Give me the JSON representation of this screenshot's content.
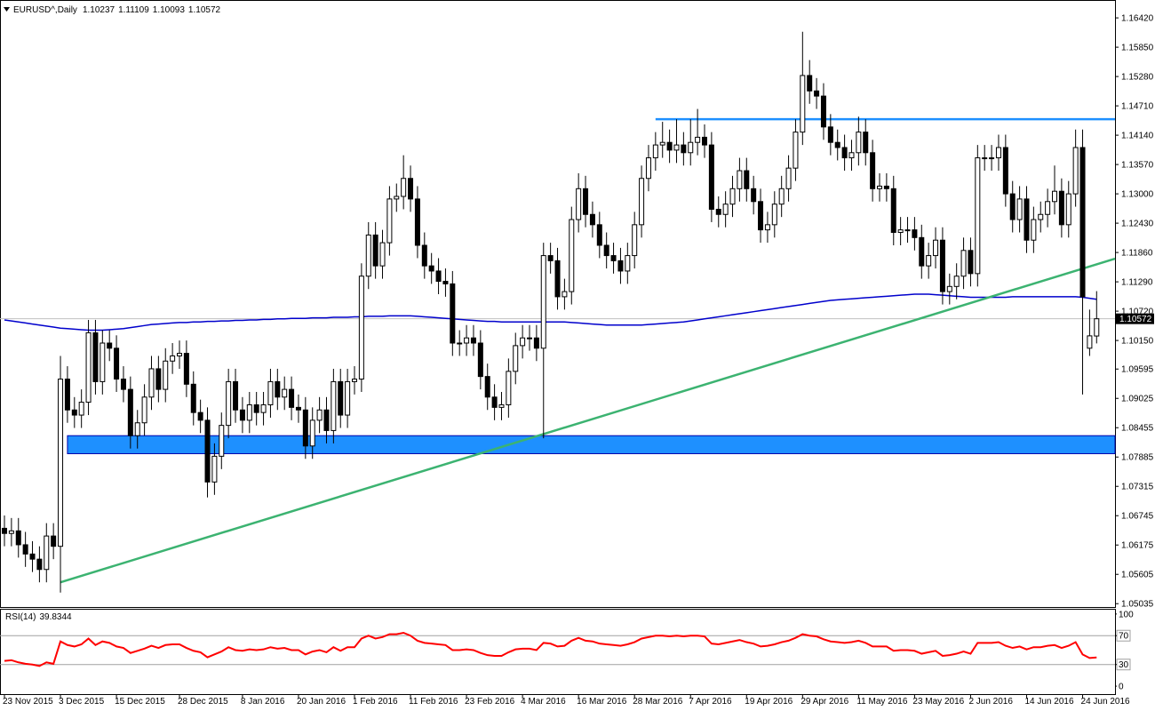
{
  "chart_data": {
    "type": "candlestick",
    "symbol": "EURUSD^,Daily",
    "categories": [
      "23 Nov 2015",
      null,
      null,
      null,
      null,
      null,
      null,
      null,
      "3 Dec 2015",
      null,
      null,
      null,
      null,
      null,
      null,
      null,
      "15 Dec 2015",
      null,
      null,
      null,
      null,
      null,
      null,
      null,
      null,
      "28 Dec 2015",
      null,
      null,
      null,
      null,
      null,
      null,
      null,
      null,
      "8 Jan 2016",
      null,
      null,
      null,
      null,
      null,
      null,
      null,
      "20 Jan 2016",
      null,
      null,
      null,
      null,
      null,
      null,
      null,
      "1 Feb 2016",
      null,
      null,
      null,
      null,
      null,
      null,
      null,
      "11 Feb 2016",
      null,
      null,
      null,
      null,
      null,
      null,
      null,
      "23 Feb 2016",
      null,
      null,
      null,
      null,
      null,
      null,
      null,
      "4 Mar 2016",
      null,
      null,
      null,
      null,
      null,
      null,
      null,
      "16 Mar 2016",
      null,
      null,
      null,
      null,
      null,
      null,
      null,
      "28 Mar 2016",
      null,
      null,
      null,
      null,
      null,
      null,
      null,
      "7 Apr 2016",
      null,
      null,
      null,
      null,
      null,
      null,
      null,
      "19 Apr 2016",
      null,
      null,
      null,
      null,
      null,
      null,
      null,
      "29 Apr 2016",
      null,
      null,
      null,
      null,
      null,
      null,
      null,
      "11 May 2016",
      null,
      null,
      null,
      null,
      null,
      null,
      null,
      "23 May 2016",
      null,
      null,
      null,
      null,
      null,
      null,
      null,
      "2 Jun 2016",
      null,
      null,
      null,
      null,
      null,
      null,
      null,
      "14 Jun 2016",
      null,
      null,
      null,
      null,
      null,
      null,
      null,
      "24 Jun 2016",
      null,
      null
    ],
    "open": [
      1.065,
      1.064,
      1.0645,
      1.0618,
      1.06,
      1.059,
      1.057,
      1.0635,
      1.0615,
      1.094,
      1.088,
      1.087,
      1.0895,
      1.103,
      1.0935,
      1.101,
      1.1,
      1.094,
      1.092,
      1.083,
      1.0855,
      1.0905,
      1.096,
      1.092,
      1.0975,
      1.0985,
      1.099,
      1.093,
      1.0875,
      1.086,
      1.074,
      1.079,
      1.085,
      1.0935,
      1.088,
      1.086,
      1.089,
      1.0875,
      1.089,
      1.0935,
      1.0905,
      1.092,
      1.0885,
      1.088,
      1.081,
      1.086,
      1.088,
      1.084,
      1.0935,
      1.087,
      1.0935,
      1.094,
      1.114,
      1.122,
      1.116,
      1.1205,
      1.129,
      1.1295,
      1.133,
      1.129,
      1.12,
      1.116,
      1.115,
      1.113,
      1.1125,
      1.101,
      1.101,
      1.102,
      1.101,
      1.0945,
      1.0905,
      1.0885,
      1.089,
      1.0955,
      1.1005,
      1.102,
      1.102,
      1.1,
      1.118,
      1.117,
      1.11,
      1.111,
      1.125,
      1.131,
      1.126,
      1.124,
      1.12,
      1.118,
      1.117,
      1.115,
      1.118,
      1.124,
      1.133,
      1.137,
      1.1395,
      1.14,
      1.1385,
      1.1395,
      1.138,
      1.14,
      1.141,
      1.1395,
      1.127,
      1.126,
      1.128,
      1.131,
      1.1345,
      1.131,
      1.1285,
      1.123,
      1.124,
      1.128,
      1.131,
      1.135,
      1.142,
      1.153,
      1.15,
      1.149,
      1.143,
      1.14,
      1.139,
      1.137,
      1.138,
      1.142,
      1.138,
      1.131,
      1.1315,
      1.131,
      1.1225,
      1.123,
      1.123,
      1.1215,
      1.116,
      1.118,
      1.121,
      1.111,
      1.112,
      1.114,
      1.119,
      1.1145,
      1.137,
      1.137,
      1.137,
      1.139,
      1.13,
      1.125,
      1.129,
      1.121,
      1.125,
      1.126,
      1.1285,
      1.1305,
      1.124,
      1.13,
      1.139,
      1.1,
      1.10237
    ],
    "high": [
      1.0675,
      1.067,
      1.067,
      1.0643,
      1.0625,
      1.0615,
      1.066,
      1.066,
      1.0985,
      1.0965,
      1.0905,
      1.092,
      1.1055,
      1.1055,
      1.1035,
      1.1035,
      1.1025,
      1.0965,
      1.0945,
      1.088,
      1.093,
      1.0985,
      1.0985,
      1.1,
      1.101,
      1.1015,
      1.1015,
      1.0955,
      1.09,
      1.0885,
      1.0815,
      1.0875,
      1.096,
      1.096,
      1.0905,
      1.0915,
      1.0915,
      1.0915,
      1.096,
      1.096,
      1.0945,
      1.0945,
      1.091,
      1.0905,
      1.0885,
      1.0905,
      1.0905,
      1.096,
      1.096,
      1.096,
      1.0965,
      1.1165,
      1.1245,
      1.1245,
      1.123,
      1.1315,
      1.132,
      1.1375,
      1.1355,
      1.1315,
      1.1225,
      1.1185,
      1.1175,
      1.1155,
      1.115,
      1.1035,
      1.1045,
      1.1045,
      1.1035,
      1.097,
      1.093,
      1.0915,
      1.098,
      1.103,
      1.1045,
      1.1045,
      1.1045,
      1.1205,
      1.1205,
      1.1195,
      1.1135,
      1.1275,
      1.134,
      1.1335,
      1.1285,
      1.1265,
      1.1225,
      1.1205,
      1.1195,
      1.1205,
      1.1265,
      1.1355,
      1.1395,
      1.142,
      1.144,
      1.1425,
      1.1445,
      1.142,
      1.1445,
      1.1465,
      1.1435,
      1.142,
      1.1295,
      1.1305,
      1.1335,
      1.137,
      1.137,
      1.1335,
      1.131,
      1.1265,
      1.1305,
      1.1335,
      1.1375,
      1.1445,
      1.1615,
      1.156,
      1.1525,
      1.1515,
      1.1455,
      1.1425,
      1.1415,
      1.1405,
      1.145,
      1.1445,
      1.1405,
      1.134,
      1.134,
      1.1335,
      1.1255,
      1.1255,
      1.1255,
      1.124,
      1.1205,
      1.1235,
      1.1235,
      1.1145,
      1.1165,
      1.1215,
      1.1215,
      1.1395,
      1.1395,
      1.1395,
      1.1415,
      1.1415,
      1.1325,
      1.1315,
      1.1315,
      1.1275,
      1.1285,
      1.131,
      1.1355,
      1.133,
      1.1325,
      1.1425,
      1.1425,
      1.1075,
      1.11109
    ],
    "low": [
      1.0615,
      1.0615,
      1.0593,
      1.0575,
      1.0565,
      1.0545,
      1.0545,
      1.059,
      1.0525,
      1.0855,
      1.0845,
      1.0845,
      1.087,
      1.091,
      1.091,
      1.0975,
      1.0915,
      1.0895,
      1.0805,
      1.0805,
      1.083,
      1.088,
      1.0895,
      1.0895,
      1.095,
      1.096,
      1.0905,
      1.085,
      1.0835,
      1.071,
      1.0715,
      1.0765,
      1.0825,
      1.0855,
      1.0835,
      1.0835,
      1.085,
      1.085,
      1.0865,
      1.088,
      1.088,
      1.086,
      1.0855,
      1.0785,
      1.0785,
      1.0835,
      1.0815,
      1.0815,
      1.0845,
      1.0845,
      1.091,
      1.0915,
      1.1115,
      1.1135,
      1.1135,
      1.118,
      1.1265,
      1.127,
      1.1265,
      1.1175,
      1.1135,
      1.1125,
      1.1105,
      1.11,
      1.0985,
      1.0985,
      1.0985,
      1.0985,
      1.092,
      1.088,
      1.086,
      1.086,
      1.0865,
      1.093,
      1.098,
      1.0995,
      1.0975,
      1.0825,
      1.1145,
      1.1075,
      1.1075,
      1.1085,
      1.1225,
      1.1235,
      1.1215,
      1.1175,
      1.1155,
      1.1145,
      1.1125,
      1.1125,
      1.1155,
      1.1215,
      1.1305,
      1.1345,
      1.137,
      1.136,
      1.136,
      1.1355,
      1.1355,
      1.1375,
      1.137,
      1.1245,
      1.1235,
      1.1235,
      1.1255,
      1.1285,
      1.1285,
      1.126,
      1.1205,
      1.1205,
      1.1215,
      1.1255,
      1.1285,
      1.1325,
      1.1395,
      1.1475,
      1.1465,
      1.1405,
      1.1375,
      1.1365,
      1.1345,
      1.1345,
      1.1355,
      1.1355,
      1.1285,
      1.1285,
      1.1285,
      1.12,
      1.12,
      1.1205,
      1.119,
      1.1135,
      1.1135,
      1.1155,
      1.1085,
      1.1085,
      1.1095,
      1.1115,
      1.112,
      1.112,
      1.1345,
      1.1345,
      1.1345,
      1.1275,
      1.1225,
      1.1225,
      1.1185,
      1.1185,
      1.1225,
      1.1235,
      1.126,
      1.1215,
      1.1215,
      1.1275,
      1.091,
      1.0985,
      1.10093
    ],
    "close": [
      1.064,
      1.0645,
      1.0618,
      1.06,
      1.059,
      1.057,
      1.0635,
      1.0615,
      1.094,
      1.088,
      1.087,
      1.0895,
      1.103,
      1.0935,
      1.101,
      1.1,
      1.094,
      1.092,
      1.083,
      1.0855,
      1.0905,
      1.096,
      1.092,
      1.0975,
      1.0985,
      1.099,
      1.093,
      1.0875,
      1.086,
      1.074,
      1.079,
      1.085,
      1.0935,
      1.088,
      1.086,
      1.089,
      1.0875,
      1.089,
      1.0935,
      1.0905,
      1.092,
      1.0885,
      1.088,
      1.081,
      1.086,
      1.088,
      1.084,
      1.0935,
      1.087,
      1.0935,
      1.094,
      1.114,
      1.122,
      1.116,
      1.1205,
      1.129,
      1.1295,
      1.133,
      1.129,
      1.12,
      1.116,
      1.115,
      1.113,
      1.1125,
      1.101,
      1.101,
      1.102,
      1.101,
      1.0945,
      1.0905,
      1.0885,
      1.089,
      1.0955,
      1.1005,
      1.102,
      1.102,
      1.1,
      1.118,
      1.117,
      1.11,
      1.111,
      1.125,
      1.131,
      1.126,
      1.124,
      1.12,
      1.118,
      1.117,
      1.115,
      1.118,
      1.124,
      1.133,
      1.137,
      1.1395,
      1.14,
      1.1385,
      1.1395,
      1.138,
      1.14,
      1.141,
      1.1395,
      1.127,
      1.126,
      1.128,
      1.131,
      1.1345,
      1.131,
      1.1285,
      1.123,
      1.124,
      1.128,
      1.131,
      1.135,
      1.142,
      1.153,
      1.15,
      1.149,
      1.143,
      1.14,
      1.139,
      1.137,
      1.138,
      1.142,
      1.138,
      1.131,
      1.1315,
      1.131,
      1.1225,
      1.123,
      1.123,
      1.1215,
      1.116,
      1.118,
      1.121,
      1.111,
      1.112,
      1.114,
      1.119,
      1.1145,
      1.137,
      1.137,
      1.137,
      1.139,
      1.13,
      1.125,
      1.129,
      1.121,
      1.125,
      1.126,
      1.1285,
      1.1305,
      1.124,
      1.13,
      1.139,
      1.11,
      1.1024,
      1.10572
    ],
    "up_color": "#ffffff",
    "down_color": "#000000",
    "ylim": [
      1.0497,
      1.1675
    ],
    "yticks": [
      {
        "value": 1.1642,
        "label": "1.16420"
      },
      {
        "value": 1.1585,
        "label": "1.15850"
      },
      {
        "value": 1.1528,
        "label": "1.15280"
      },
      {
        "value": 1.1471,
        "label": "1.14710"
      },
      {
        "value": 1.1414,
        "label": "1.14140"
      },
      {
        "value": 1.1357,
        "label": "1.13570"
      },
      {
        "value": 1.13,
        "label": "1.13000"
      },
      {
        "value": 1.1243,
        "label": "1.12430"
      },
      {
        "value": 1.1186,
        "label": "1.11860"
      },
      {
        "value": 1.1129,
        "label": "1.11290"
      },
      {
        "value": 1.1072,
        "label": "1.10720"
      },
      {
        "value": 1.1015,
        "label": "1.10150"
      },
      1.09595,
      1.09025,
      1.08455,
      1.07885,
      1.07315,
      1.06745,
      1.06175,
      1.05605,
      1.05035
    ],
    "ma": {
      "color": "#0000cc",
      "values": [
        1.1055,
        1.1053,
        1.1051,
        1.1049,
        1.1047,
        1.1045,
        1.1043,
        1.1041,
        1.1039,
        1.1038,
        1.1037,
        1.1036,
        1.1035,
        1.1035,
        1.1035,
        1.1036,
        1.1037,
        1.1038,
        1.104,
        1.1042,
        1.1044,
        1.1046,
        1.1047,
        1.1048,
        1.1049,
        1.105,
        1.105,
        1.1051,
        1.1051,
        1.1052,
        1.1052,
        1.1053,
        1.1053,
        1.1054,
        1.1054,
        1.1055,
        1.1055,
        1.1056,
        1.1056,
        1.1057,
        1.1057,
        1.1058,
        1.1058,
        1.1058,
        1.1059,
        1.1059,
        1.1059,
        1.106,
        1.106,
        1.106,
        1.1061,
        1.1061,
        1.1062,
        1.1062,
        1.1062,
        1.1063,
        1.1063,
        1.1063,
        1.1063,
        1.1062,
        1.1061,
        1.106,
        1.1059,
        1.1058,
        1.1057,
        1.1056,
        1.1055,
        1.1054,
        1.1053,
        1.1052,
        1.1052,
        1.1051,
        1.1051,
        1.1051,
        1.1051,
        1.1051,
        1.1051,
        1.1051,
        1.1051,
        1.1051,
        1.1051,
        1.105,
        1.1049,
        1.1048,
        1.1047,
        1.1046,
        1.1045,
        1.1045,
        1.1045,
        1.1045,
        1.1045,
        1.1045,
        1.1046,
        1.1047,
        1.1048,
        1.1049,
        1.105,
        1.1051,
        1.1053,
        1.1055,
        1.1057,
        1.1059,
        1.1061,
        1.1063,
        1.1065,
        1.1067,
        1.1069,
        1.1071,
        1.1073,
        1.1075,
        1.1077,
        1.1079,
        1.1081,
        1.1083,
        1.1085,
        1.1087,
        1.1089,
        1.1091,
        1.1093,
        1.1094,
        1.1095,
        1.1096,
        1.1097,
        1.1098,
        1.1099,
        1.11,
        1.1101,
        1.1102,
        1.1103,
        1.1104,
        1.1105,
        1.1105,
        1.1105,
        1.1104,
        1.1103,
        1.1102,
        1.1101,
        1.11,
        1.1099,
        1.1099,
        1.1099,
        1.1099,
        1.1099,
        1.1099,
        1.11,
        1.11,
        1.11,
        1.11,
        1.11,
        1.11,
        1.11,
        1.11,
        1.11,
        1.11,
        1.1099,
        1.1097,
        1.1095
      ]
    },
    "resistance": {
      "color": "#1e90ff",
      "value": 1.1445,
      "from": 93
    },
    "support": {
      "color": "#1e90ff",
      "values": [
        1.0795,
        1.083
      ],
      "from": 9
    },
    "trendline": {
      "color": "#3cb371",
      "x": [
        8,
        156
      ],
      "values": [
        1.0545,
        1.1163
      ]
    },
    "rsi": {
      "name": "RSI(14)",
      "color": "#ff0000",
      "ylim": [
        -11,
        106
      ],
      "yticks": [
        100,
        70,
        30,
        0
      ],
      "levels": [
        70,
        30
      ],
      "values": [
        35,
        36,
        33,
        31,
        30,
        28,
        33,
        31,
        62,
        57,
        55,
        58,
        66,
        57,
        62,
        60,
        55,
        53,
        46,
        49,
        52,
        56,
        53,
        57,
        58,
        58,
        53,
        49,
        47,
        40,
        44,
        48,
        54,
        50,
        49,
        51,
        50,
        51,
        54,
        52,
        53,
        50,
        50,
        44,
        48,
        50,
        47,
        54,
        49,
        54,
        54,
        66,
        70,
        66,
        68,
        72,
        72,
        74,
        70,
        63,
        60,
        59,
        58,
        57,
        50,
        50,
        51,
        50,
        46,
        43,
        42,
        42,
        47,
        51,
        52,
        52,
        50,
        60,
        59,
        55,
        56,
        63,
        67,
        63,
        62,
        59,
        58,
        57,
        56,
        58,
        61,
        66,
        68,
        70,
        70,
        69,
        70,
        69,
        70,
        70,
        69,
        59,
        58,
        60,
        62,
        64,
        61,
        59,
        55,
        56,
        58,
        61,
        63,
        67,
        72,
        70,
        69,
        65,
        62,
        61,
        60,
        61,
        63,
        60,
        55,
        55,
        55,
        49,
        50,
        50,
        49,
        45,
        47,
        49,
        42,
        43,
        45,
        48,
        45,
        60,
        60,
        60,
        61,
        56,
        53,
        55,
        51,
        54,
        54,
        56,
        57,
        53,
        56,
        61,
        44,
        39,
        39.8344
      ]
    }
  }
}
